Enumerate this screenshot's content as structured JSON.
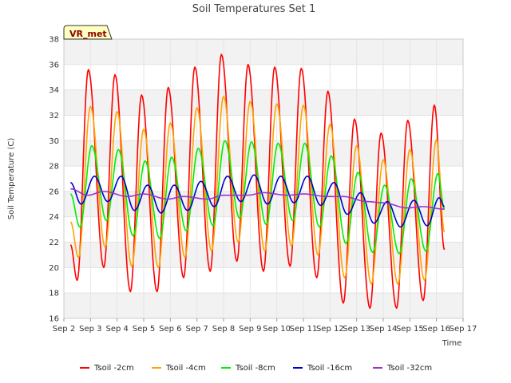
{
  "chart_data": {
    "type": "line",
    "title": "Soil Temperatures Set 1",
    "xlabel": "Time",
    "ylabel": "Soil Temperature (C)",
    "badge": "VR_met",
    "xlim": [
      2,
      17
    ],
    "ylim": [
      16,
      38
    ],
    "x_ticks": [
      2,
      3,
      4,
      5,
      6,
      7,
      8,
      9,
      10,
      11,
      12,
      13,
      14,
      15,
      16,
      17
    ],
    "x_tick_labels": [
      "Sep 2",
      "Sep 3",
      "Sep 4",
      "Sep 5",
      "Sep 6",
      "Sep 7",
      "Sep 8",
      "Sep 9",
      "Sep 10",
      "Sep 11",
      "Sep 12",
      "Sep 13",
      "Sep 14",
      "Sep 15",
      "Sep 16",
      "Sep 17"
    ],
    "y_ticks": [
      16,
      18,
      20,
      22,
      24,
      26,
      28,
      30,
      32,
      34,
      36,
      38
    ],
    "grid": true,
    "legend_position": "bottom",
    "series": [
      {
        "name": "Tsoil -2cm",
        "color": "#ff0000",
        "x": [
          2.25,
          2.5,
          2.92,
          3.5,
          3.92,
          4.5,
          4.92,
          5.5,
          5.92,
          6.5,
          6.92,
          7.5,
          7.92,
          8.5,
          8.92,
          9.5,
          9.92,
          10.5,
          10.92,
          11.5,
          11.92,
          12.5,
          12.92,
          13.5,
          13.92,
          14.5,
          14.92,
          15.5,
          15.92,
          16.3
        ],
        "y": [
          21.8,
          19.0,
          35.6,
          20.0,
          35.2,
          18.1,
          33.6,
          18.1,
          34.2,
          19.2,
          35.8,
          19.7,
          36.8,
          20.5,
          36.0,
          19.7,
          35.8,
          20.1,
          35.7,
          19.2,
          33.9,
          17.2,
          31.7,
          16.8,
          30.6,
          16.8,
          31.6,
          17.4,
          32.8,
          21.4
        ]
      },
      {
        "name": "Tsoil -4cm",
        "color": "#ffa500",
        "x": [
          2.25,
          2.55,
          3.0,
          3.55,
          4.0,
          4.55,
          5.0,
          5.55,
          6.0,
          6.55,
          7.0,
          7.55,
          8.0,
          8.55,
          9.0,
          9.55,
          10.0,
          10.55,
          11.0,
          11.55,
          12.0,
          12.55,
          13.0,
          13.55,
          14.0,
          14.55,
          15.0,
          15.55,
          16.0,
          16.3
        ],
        "y": [
          23.6,
          20.8,
          32.7,
          21.6,
          32.3,
          20.1,
          30.9,
          20.0,
          31.4,
          20.8,
          32.6,
          21.3,
          33.5,
          22.0,
          33.1,
          21.3,
          32.9,
          21.7,
          32.8,
          21.0,
          31.3,
          19.2,
          29.6,
          18.7,
          28.5,
          18.7,
          29.3,
          19.0,
          30.1,
          22.8
        ]
      },
      {
        "name": "Tsoil -8cm",
        "color": "#00ee00",
        "x": [
          2.25,
          2.6,
          3.05,
          3.6,
          4.05,
          4.6,
          5.05,
          5.6,
          6.05,
          6.6,
          7.05,
          7.6,
          8.05,
          8.6,
          9.05,
          9.6,
          10.05,
          10.6,
          11.05,
          11.6,
          12.05,
          12.6,
          13.05,
          13.6,
          14.05,
          14.6,
          15.05,
          15.6,
          16.05,
          16.3
        ],
        "y": [
          25.8,
          23.2,
          29.6,
          23.7,
          29.3,
          22.5,
          28.4,
          22.3,
          28.7,
          22.9,
          29.4,
          23.3,
          30.0,
          23.9,
          29.9,
          23.4,
          29.8,
          23.7,
          29.8,
          23.2,
          28.8,
          21.9,
          27.5,
          21.2,
          26.5,
          21.1,
          27.0,
          21.3,
          27.4,
          24.6
        ]
      },
      {
        "name": "Tsoil -16cm",
        "color": "#0000cc",
        "x": [
          2.25,
          2.65,
          3.15,
          3.65,
          4.15,
          4.65,
          5.15,
          5.65,
          6.15,
          6.65,
          7.15,
          7.65,
          8.15,
          8.65,
          9.15,
          9.65,
          10.15,
          10.65,
          11.15,
          11.65,
          12.15,
          12.65,
          13.15,
          13.65,
          14.15,
          14.65,
          15.15,
          15.65,
          16.1,
          16.3
        ],
        "y": [
          26.7,
          25.0,
          27.2,
          25.2,
          27.2,
          24.5,
          26.5,
          24.3,
          26.5,
          24.5,
          26.8,
          24.8,
          27.2,
          25.2,
          27.3,
          25.0,
          27.2,
          25.1,
          27.2,
          24.9,
          26.7,
          24.2,
          25.9,
          23.5,
          25.2,
          23.2,
          25.3,
          23.3,
          25.5,
          24.8
        ]
      },
      {
        "name": "Tsoil -32cm",
        "color": "#9933cc",
        "x": [
          2.25,
          2.9,
          3.5,
          4.4,
          5.0,
          5.9,
          6.5,
          7.4,
          8.0,
          8.9,
          9.5,
          10.4,
          11.0,
          11.9,
          12.5,
          13.4,
          14.0,
          14.9,
          15.5,
          16.3
        ],
        "y": [
          26.2,
          25.7,
          26.0,
          25.6,
          25.8,
          25.4,
          25.6,
          25.4,
          25.7,
          25.7,
          25.9,
          25.7,
          25.8,
          25.6,
          25.6,
          25.2,
          25.1,
          24.7,
          24.8,
          24.6
        ]
      }
    ]
  }
}
